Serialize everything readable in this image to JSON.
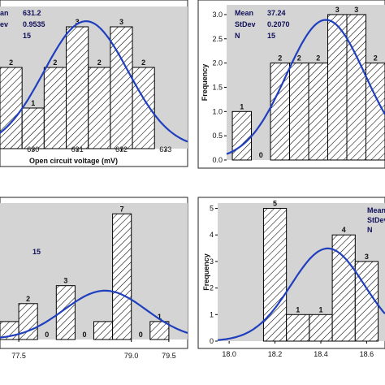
{
  "chart_data": [
    {
      "type": "bar",
      "panel": "top-left",
      "background": "#d4d4d4",
      "bar_pattern": "hatched",
      "curve_color": "#1f3fbf",
      "xlabel": "Open circuit voltage (mV)",
      "ylabel": "",
      "xticks": [
        "630",
        "631",
        "632",
        "633"
      ],
      "yticks": [],
      "stats_labels": [
        "an",
        "ev",
        ""
      ],
      "stats_values": [
        "631.2",
        "0.9535",
        "15"
      ],
      "bins": [
        {
          "x0": 629.25,
          "x1": 629.75,
          "value": 2
        },
        {
          "x0": 629.75,
          "x1": 630.25,
          "value": 1
        },
        {
          "x0": 630.25,
          "x1": 630.75,
          "value": 2
        },
        {
          "x0": 630.75,
          "x1": 631.25,
          "value": 3
        },
        {
          "x0": 631.25,
          "x1": 631.75,
          "value": 2
        },
        {
          "x0": 631.75,
          "x1": 632.25,
          "value": 3
        },
        {
          "x0": 632.25,
          "x1": 632.75,
          "value": 2
        }
      ],
      "bar_labels": [
        "2",
        "1",
        "2",
        "3",
        "2",
        "3",
        "2"
      ],
      "normal_curve": {
        "mean": 631.2,
        "sd": 0.9535,
        "n": 15,
        "bin_width": 0.5
      },
      "xlim": [
        629.25,
        633.5
      ],
      "ylim": [
        0,
        3.5
      ]
    },
    {
      "type": "bar",
      "panel": "top-right",
      "background": "#d4d4d4",
      "bar_pattern": "hatched",
      "curve_color": "#1f3fbf",
      "xlabel": "",
      "ylabel": "Frequency",
      "xticks": [],
      "yticks": [
        "0.0",
        "0.5",
        "1.0",
        "1.5",
        "2.0",
        "2.5",
        "3.0"
      ],
      "stats_labels": [
        "Mean",
        "StDev",
        "N"
      ],
      "stats_values": [
        "37.24",
        "0.2070",
        "15"
      ],
      "bins": [
        {
          "x0": 36.75,
          "x1": 36.85,
          "value": 1
        },
        {
          "x0": 36.85,
          "x1": 36.95,
          "value": 0
        },
        {
          "x0": 36.95,
          "x1": 37.05,
          "value": 2
        },
        {
          "x0": 37.05,
          "x1": 37.15,
          "value": 2
        },
        {
          "x0": 37.15,
          "x1": 37.25,
          "value": 2
        },
        {
          "x0": 37.25,
          "x1": 37.35,
          "value": 3
        },
        {
          "x0": 37.35,
          "x1": 37.45,
          "value": 3
        },
        {
          "x0": 37.45,
          "x1": 37.55,
          "value": 2
        }
      ],
      "bar_labels": [
        "1",
        "0",
        "2",
        "2",
        "2",
        "3",
        "3",
        "2"
      ],
      "normal_curve": {
        "mean": 37.24,
        "sd": 0.207,
        "n": 15,
        "bin_width": 0.1
      },
      "xlim": [
        36.72,
        37.55
      ],
      "ylim": [
        0,
        3.2
      ]
    },
    {
      "type": "bar",
      "panel": "bottom-left",
      "background": "#d4d4d4",
      "bar_pattern": "hatched",
      "curve_color": "#1f3fbf",
      "xlabel": "",
      "ylabel": "",
      "xticks": [
        "77.5",
        "79.0",
        "79.5"
      ],
      "yticks": [],
      "stats_labels": [
        ""
      ],
      "stats_values": [
        "15"
      ],
      "bins": [
        {
          "x0": 77.25,
          "x1": 77.5,
          "value": 1
        },
        {
          "x0": 77.5,
          "x1": 77.75,
          "value": 2
        },
        {
          "x0": 77.75,
          "x1": 78.0,
          "value": 0
        },
        {
          "x0": 78.0,
          "x1": 78.25,
          "value": 3
        },
        {
          "x0": 78.25,
          "x1": 78.5,
          "value": 0
        },
        {
          "x0": 78.5,
          "x1": 78.75,
          "value": 1
        },
        {
          "x0": 78.75,
          "x1": 79.0,
          "value": 7
        },
        {
          "x0": 79.0,
          "x1": 79.25,
          "value": 0
        },
        {
          "x0": 79.25,
          "x1": 79.5,
          "value": 1
        }
      ],
      "bar_labels": [
        "",
        "2",
        "0",
        "3",
        "0",
        "",
        "7",
        "0",
        "1"
      ],
      "normal_curve": {
        "mean": 78.65,
        "sd": 0.55,
        "n": 15,
        "bin_width": 0.25
      },
      "xlim": [
        77.25,
        79.75
      ],
      "ylim": [
        0,
        7.6
      ]
    },
    {
      "type": "bar",
      "panel": "bottom-right",
      "background": "#d4d4d4",
      "bar_pattern": "hatched",
      "curve_color": "#1f3fbf",
      "xlabel": "",
      "ylabel": "Frequency",
      "xticks": [
        "18.0",
        "18.2",
        "18.4",
        "18.6"
      ],
      "yticks": [
        "0",
        "1",
        "2",
        "3",
        "4",
        "5"
      ],
      "stats_labels": [
        "Mean",
        "StDev",
        "N"
      ],
      "stats_values": [],
      "bins": [
        {
          "x0": 18.15,
          "x1": 18.25,
          "value": 5
        },
        {
          "x0": 18.25,
          "x1": 18.35,
          "value": 1
        },
        {
          "x0": 18.35,
          "x1": 18.45,
          "value": 1
        },
        {
          "x0": 18.45,
          "x1": 18.55,
          "value": 4
        },
        {
          "x0": 18.55,
          "x1": 18.65,
          "value": 3
        }
      ],
      "bar_labels": [
        "5",
        "1",
        "1",
        "4",
        "3"
      ],
      "normal_curve": {
        "mean": 18.43,
        "sd": 0.16,
        "n": 14,
        "bin_width": 0.1
      },
      "xlim": [
        17.95,
        18.68
      ],
      "ylim": [
        0,
        5.2
      ]
    }
  ]
}
